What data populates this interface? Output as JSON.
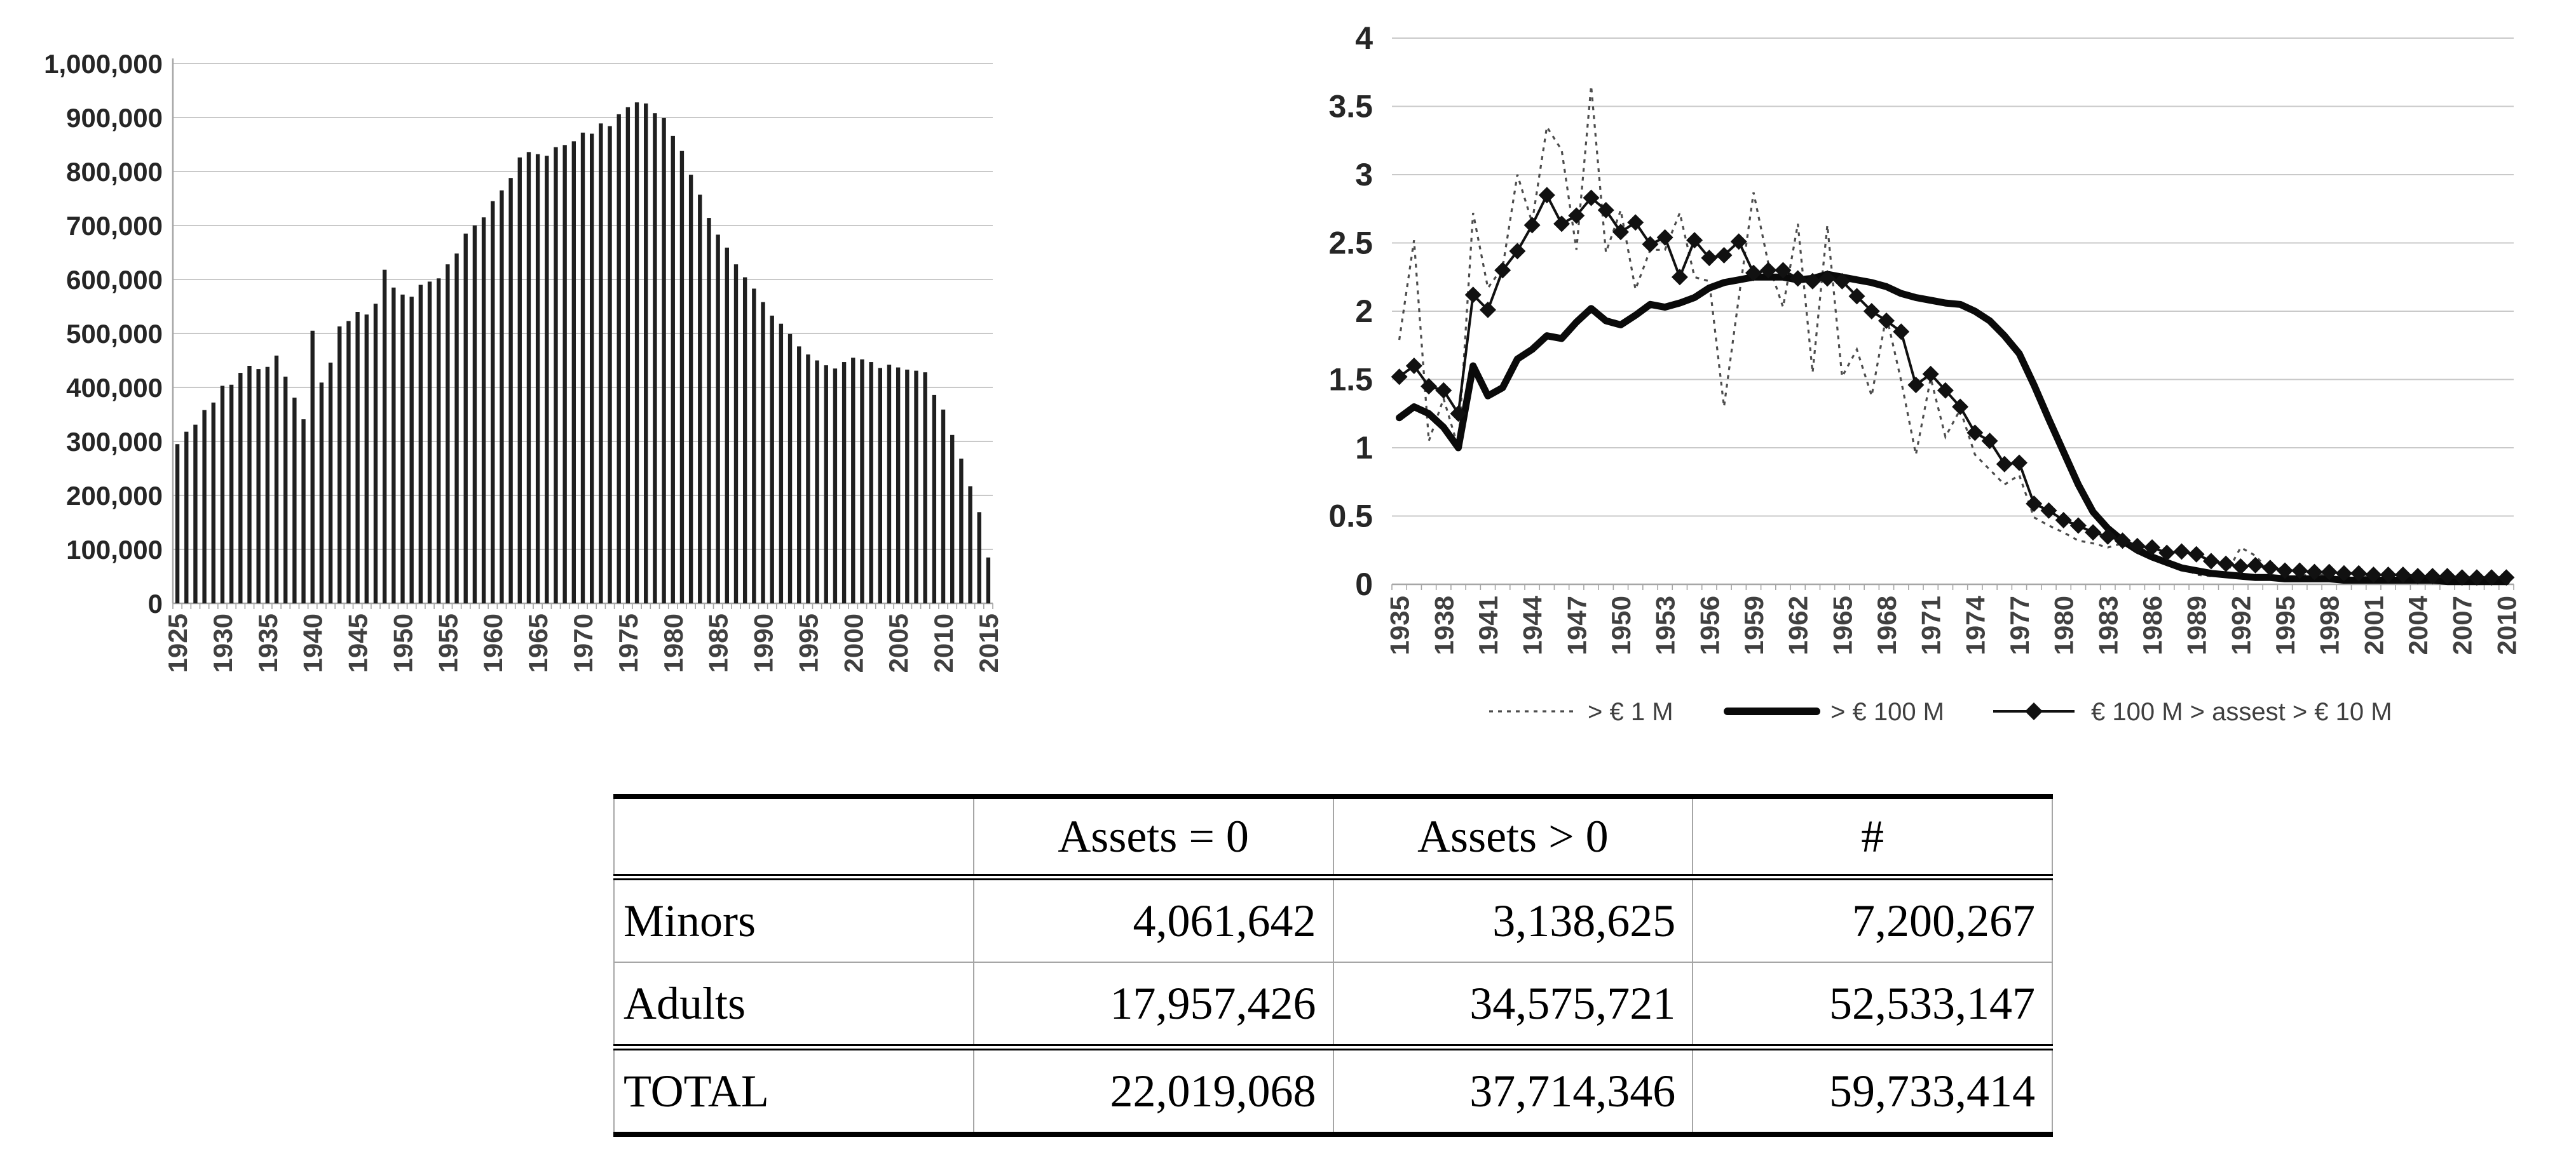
{
  "page": {
    "background": "#ffffff"
  },
  "colors": {
    "bar_fill": "#1f1f1f",
    "gridline": "#c9c9c9",
    "axis": "#a6a6a6",
    "axis_text": "#262626",
    "xlabel_text": "#404040",
    "legend_text": "#404040",
    "dotted_line": "#4d4d4d",
    "thick_line": "#0a0a0a",
    "diamond_line": "#111111"
  },
  "chart_data": [
    {
      "type": "bar",
      "title": "",
      "xlabel": "",
      "ylabel": "",
      "ylim": [
        0,
        1000000
      ],
      "ytick_step": 100000,
      "ytick_labels": [
        "0",
        "100,000",
        "200,000",
        "300,000",
        "400,000",
        "500,000",
        "600,000",
        "700,000",
        "800,000",
        "900,000",
        "1,000,000"
      ],
      "grid": true,
      "categories": [
        1925,
        1926,
        1927,
        1928,
        1929,
        1930,
        1931,
        1932,
        1933,
        1934,
        1935,
        1936,
        1937,
        1938,
        1939,
        1940,
        1941,
        1942,
        1943,
        1944,
        1945,
        1946,
        1947,
        1948,
        1949,
        1950,
        1951,
        1952,
        1953,
        1954,
        1955,
        1956,
        1957,
        1958,
        1959,
        1960,
        1961,
        1962,
        1963,
        1964,
        1965,
        1966,
        1967,
        1968,
        1969,
        1970,
        1971,
        1972,
        1973,
        1974,
        1975,
        1976,
        1977,
        1978,
        1979,
        1980,
        1981,
        1982,
        1983,
        1984,
        1985,
        1986,
        1987,
        1988,
        1989,
        1990,
        1991,
        1992,
        1993,
        1994,
        1995,
        1996,
        1997,
        1998,
        1999,
        2000,
        2001,
        2002,
        2003,
        2004,
        2005,
        2006,
        2007,
        2008,
        2009,
        2010,
        2011,
        2012,
        2013,
        2014,
        2015
      ],
      "xtick_labels": [
        "1925",
        "1930",
        "1935",
        "1940",
        "1945",
        "1950",
        "1955",
        "1960",
        "1965",
        "1970",
        "1975",
        "1980",
        "1985",
        "1990",
        "1995",
        "2000",
        "2005",
        "2010",
        "2015"
      ],
      "values": [
        295000,
        318000,
        331000,
        358000,
        372000,
        403000,
        405000,
        427000,
        440000,
        434000,
        438000,
        459000,
        420000,
        381000,
        341000,
        505000,
        409000,
        446000,
        513000,
        523000,
        540000,
        535000,
        555000,
        618000,
        585000,
        572000,
        568000,
        590000,
        596000,
        602000,
        628000,
        648000,
        685000,
        700000,
        715000,
        745000,
        765000,
        788000,
        826000,
        836000,
        832000,
        829000,
        845000,
        849000,
        856000,
        872000,
        870000,
        889000,
        884000,
        906000,
        919000,
        928000,
        926000,
        908000,
        899000,
        866000,
        838000,
        794000,
        757000,
        714000,
        683000,
        659000,
        628000,
        604000,
        583000,
        558000,
        533000,
        518000,
        499000,
        476000,
        461000,
        450000,
        441000,
        435000,
        447000,
        455000,
        452000,
        447000,
        436000,
        442000,
        437000,
        433000,
        431000,
        428000,
        386000,
        359000,
        312000,
        268000,
        217000,
        169000,
        85000
      ]
    },
    {
      "type": "line",
      "title": "",
      "xlabel": "",
      "ylabel": "",
      "ylim": [
        0,
        4
      ],
      "ytick_step": 0.5,
      "ytick_labels": [
        "0",
        "0.5",
        "1",
        "1.5",
        "2",
        "2.5",
        "3",
        "3.5",
        "4"
      ],
      "grid": true,
      "legend_position": "bottom",
      "x": [
        1935,
        1936,
        1937,
        1938,
        1939,
        1940,
        1941,
        1942,
        1943,
        1944,
        1945,
        1946,
        1947,
        1948,
        1949,
        1950,
        1951,
        1952,
        1953,
        1954,
        1955,
        1956,
        1957,
        1958,
        1959,
        1960,
        1961,
        1962,
        1963,
        1964,
        1965,
        1966,
        1967,
        1968,
        1969,
        1970,
        1971,
        1972,
        1973,
        1974,
        1975,
        1976,
        1977,
        1978,
        1979,
        1980,
        1981,
        1982,
        1983,
        1984,
        1985,
        1986,
        1987,
        1988,
        1989,
        1990,
        1991,
        1992,
        1993,
        1994,
        1995,
        1996,
        1997,
        1998,
        1999,
        2000,
        2001,
        2002,
        2003,
        2004,
        2005,
        2006,
        2007,
        2008,
        2009,
        2010
      ],
      "xtick_labels": [
        "1935",
        "1938",
        "1941",
        "1944",
        "1947",
        "1950",
        "1953",
        "1956",
        "1959",
        "1962",
        "1965",
        "1968",
        "1971",
        "1974",
        "1977",
        "1980",
        "1983",
        "1986",
        "1989",
        "1992",
        "1995",
        "1998",
        "2001",
        "2004",
        "2007",
        "2010"
      ],
      "series": [
        {
          "name": "> € 1 M",
          "style": "dotted",
          "values": [
            1.79,
            2.52,
            1.05,
            1.36,
            1.0,
            2.72,
            2.17,
            2.32,
            3.0,
            2.65,
            3.35,
            3.18,
            2.45,
            3.65,
            2.43,
            2.74,
            2.16,
            2.45,
            2.45,
            2.72,
            2.25,
            2.22,
            1.3,
            2.1,
            2.87,
            2.35,
            2.03,
            2.64,
            1.55,
            2.63,
            1.52,
            1.72,
            1.38,
            1.97,
            1.49,
            0.95,
            1.51,
            1.08,
            1.28,
            0.95,
            0.84,
            0.73,
            0.8,
            0.49,
            0.43,
            0.38,
            0.32,
            0.3,
            0.27,
            0.3,
            0.28,
            0.22,
            0.17,
            0.13,
            0.07,
            0.06,
            0.07,
            0.27,
            0.21,
            0.09,
            0.13,
            0.07,
            0.06,
            0.08,
            0.06,
            0.06,
            0.05,
            0.06,
            0.05,
            0.05,
            0.05,
            0.04,
            0.05,
            0.04,
            0.04,
            0.04
          ]
        },
        {
          "name": "> € 100 M",
          "style": "thick",
          "values": [
            1.22,
            1.3,
            1.25,
            1.15,
            1.0,
            1.6,
            1.38,
            1.44,
            1.65,
            1.72,
            1.82,
            1.8,
            1.92,
            2.02,
            1.93,
            1.9,
            1.97,
            2.05,
            2.03,
            2.06,
            2.1,
            2.17,
            2.21,
            2.23,
            2.25,
            2.25,
            2.25,
            2.23,
            2.24,
            2.27,
            2.25,
            2.23,
            2.21,
            2.18,
            2.13,
            2.1,
            2.08,
            2.06,
            2.05,
            2.0,
            1.93,
            1.82,
            1.69,
            1.46,
            1.21,
            0.97,
            0.73,
            0.53,
            0.41,
            0.32,
            0.25,
            0.2,
            0.16,
            0.12,
            0.1,
            0.08,
            0.07,
            0.06,
            0.05,
            0.05,
            0.04,
            0.04,
            0.04,
            0.04,
            0.03,
            0.03,
            0.03,
            0.03,
            0.03,
            0.03,
            0.03,
            0.02,
            0.02,
            0.02,
            0.02,
            0.02
          ]
        },
        {
          "name": "€ 100 M > assest > € 10 M",
          "style": "diamond",
          "values": [
            1.52,
            1.6,
            1.45,
            1.42,
            1.25,
            2.12,
            2.01,
            2.3,
            2.44,
            2.63,
            2.85,
            2.64,
            2.7,
            2.83,
            2.74,
            2.58,
            2.65,
            2.49,
            2.54,
            2.25,
            2.52,
            2.39,
            2.41,
            2.51,
            2.28,
            2.3,
            2.3,
            2.24,
            2.22,
            2.24,
            2.22,
            2.11,
            2.0,
            1.93,
            1.85,
            1.46,
            1.54,
            1.42,
            1.3,
            1.11,
            1.05,
            0.88,
            0.89,
            0.59,
            0.54,
            0.47,
            0.43,
            0.38,
            0.35,
            0.32,
            0.28,
            0.27,
            0.23,
            0.24,
            0.22,
            0.17,
            0.15,
            0.13,
            0.14,
            0.12,
            0.1,
            0.1,
            0.09,
            0.09,
            0.08,
            0.08,
            0.07,
            0.07,
            0.07,
            0.06,
            0.06,
            0.06,
            0.05,
            0.05,
            0.05,
            0.05
          ]
        }
      ]
    },
    {
      "type": "table",
      "headers": [
        "",
        "Assets = 0",
        "Assets > 0",
        "#"
      ],
      "rows": [
        {
          "label": "Minors",
          "values": [
            "4,061,642",
            "3,138,625",
            "7,200,267"
          ]
        },
        {
          "label": "Adults",
          "values": [
            "17,957,426",
            "34,575,721",
            "52,533,147"
          ]
        },
        {
          "label": "TOTAL",
          "values": [
            "22,019,068",
            "37,714,346",
            "59,733,414"
          ]
        }
      ]
    }
  ]
}
